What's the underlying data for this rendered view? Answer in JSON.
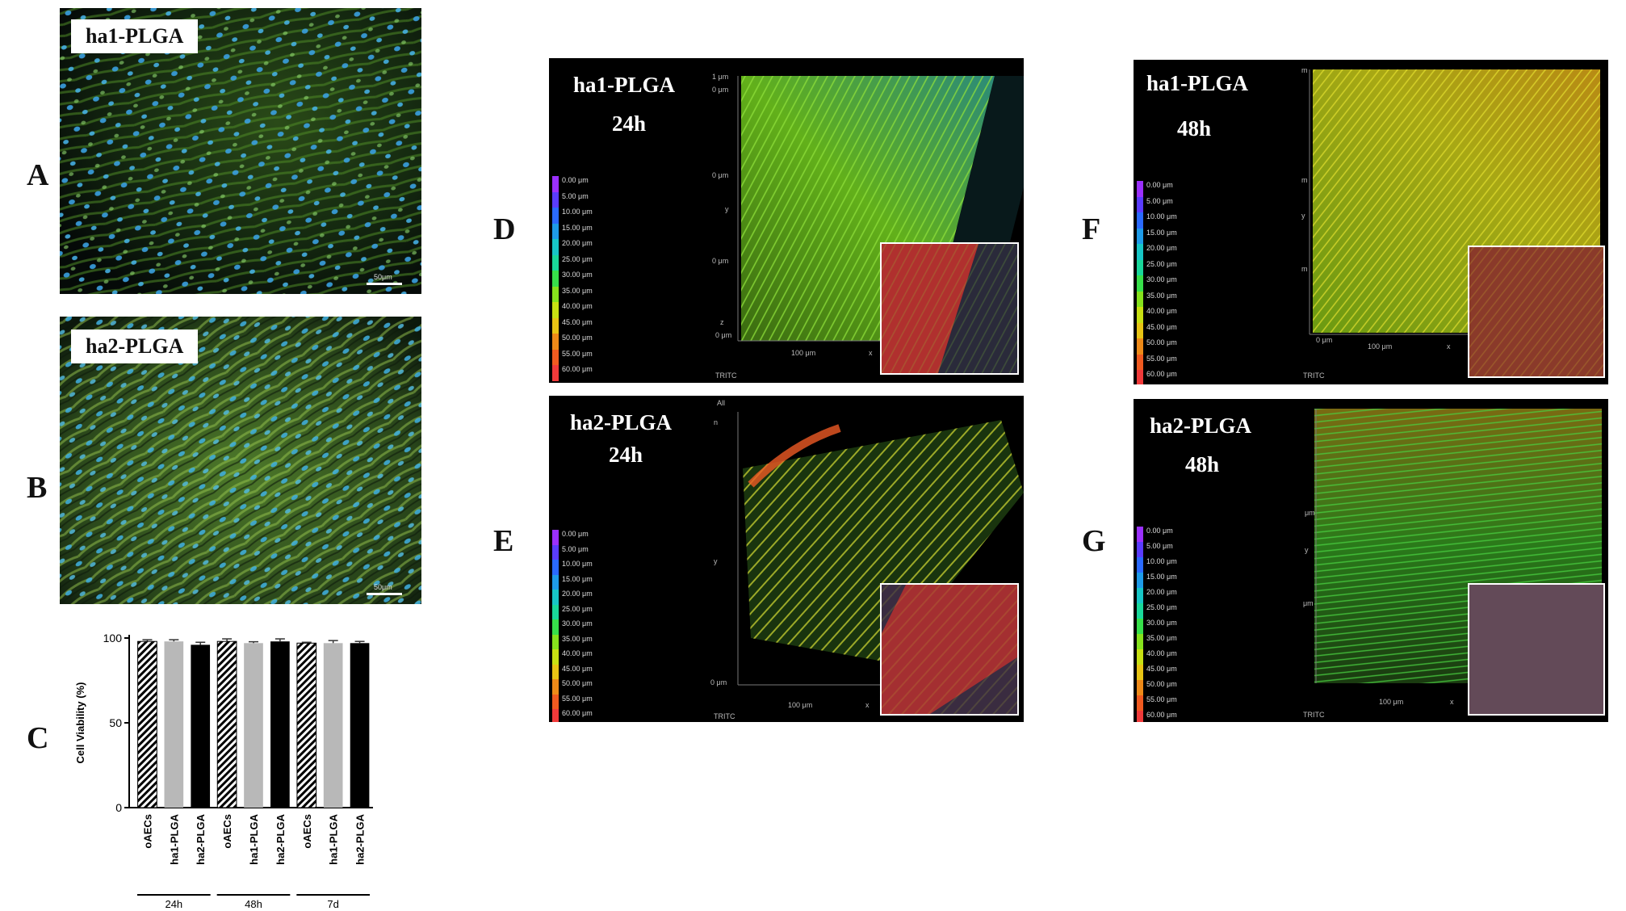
{
  "panel_letters": {
    "A": "A",
    "B": "B",
    "C": "C",
    "D": "D",
    "E": "E",
    "F": "F",
    "G": "G"
  },
  "panel_a": {
    "label": "ha1-PLGA",
    "scale": "50μm"
  },
  "panel_b": {
    "label": "ha2-PLGA",
    "scale": "50μm"
  },
  "panel_d": {
    "title": "ha1-PLGA",
    "time": "24h",
    "x_scale": "100 μm",
    "channel": "TRITC",
    "axis_ticks": [
      "1 μm",
      "0 μm",
      "0 μm",
      "y",
      "0 μm",
      "z",
      "0 μm",
      "x"
    ]
  },
  "panel_e": {
    "title": "ha2-PLGA",
    "time": "24h",
    "x_scale": "100 μm",
    "channel": "TRITC",
    "axis_ticks": [
      "All",
      "n",
      "y",
      "0 μm",
      "x"
    ]
  },
  "panel_f": {
    "title": "ha1-PLGA",
    "time": "48h",
    "x_scale": "100 μm",
    "channel": "TRITC",
    "axis_ticks": [
      "m",
      "m",
      "y",
      "m",
      "0 μm",
      "x"
    ]
  },
  "panel_g": {
    "title": "ha2-PLGA",
    "time": "48h",
    "x_scale": "100 μm",
    "channel": "TRITC",
    "axis_ticks": [
      "μm",
      "y",
      "μm",
      "x"
    ]
  },
  "depth_legend": [
    "0.00 μm",
    "5.00 μm",
    "10.00 μm",
    "15.00 μm",
    "20.00 μm",
    "25.00 μm",
    "30.00 μm",
    "35.00 μm",
    "40.00 μm",
    "45.00 μm",
    "50.00 μm",
    "55.00 μm",
    "60.00 μm"
  ],
  "depth_colors": [
    "#9b30ff",
    "#5a3cff",
    "#2a6aff",
    "#1e9be8",
    "#17c6c6",
    "#19d89a",
    "#37e04a",
    "#86e21c",
    "#c8e012",
    "#e8c414",
    "#ee8a18",
    "#f05a20",
    "#f03a3a"
  ],
  "chart_data": {
    "type": "bar",
    "ylabel": "Cell Viability (%)",
    "ylim": [
      0,
      100
    ],
    "yticks": [
      "0",
      "50",
      "100"
    ],
    "categories": [
      "oAECs",
      "ha1-PLGA",
      "ha2-PLGA",
      "oAECs",
      "ha1-PLGA",
      "ha2-PLGA",
      "oAECs",
      "ha1-PLGA",
      "ha2-PLGA"
    ],
    "groups": [
      "24h",
      "48h",
      "7d"
    ],
    "values": [
      98,
      98,
      96,
      98,
      97,
      98,
      97,
      97,
      97
    ],
    "errors": [
      1,
      1,
      1.5,
      1.5,
      0.8,
      1.5,
      0.5,
      1.5,
      1
    ],
    "fills": [
      "hatch",
      "#b8b8b8",
      "#000000",
      "hatch",
      "#b8b8b8",
      "#000000",
      "hatch",
      "#b8b8b8",
      "#000000"
    ]
  }
}
